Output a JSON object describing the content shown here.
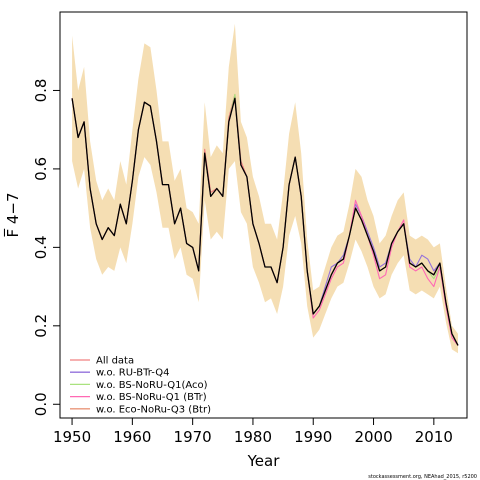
{
  "chart_data": {
    "type": "line",
    "title": "",
    "xlabel": "Year",
    "ylabel": "F̅ 4−7",
    "xlim": [
      1948,
      2015.5
    ],
    "ylim": [
      -0.035,
      1.0
    ],
    "x_ticks": [
      1950,
      1960,
      1970,
      1980,
      1990,
      2000,
      2010
    ],
    "x_tick_labels": [
      "1950",
      "1960",
      "1970",
      "1980",
      "1990",
      "2000",
      "2010"
    ],
    "y_ticks": [
      0.0,
      0.2,
      0.4,
      0.6,
      0.8
    ],
    "y_tick_labels": [
      "0.0",
      "0.2",
      "0.4",
      "0.6",
      "0.8"
    ],
    "grid": false,
    "legend_position": "bottom-left",
    "colors": {
      "band": "#f5deb3",
      "main_line": "#000000",
      "all_data": "#f08080",
      "ru_btr_q4": "#9370db",
      "bs_noru_q1_aco": "#a9e27f",
      "bs_noru_q1_btr": "#ff69b4",
      "eco_noru_q3": "#e9967a"
    },
    "years": [
      1950,
      1951,
      1952,
      1953,
      1954,
      1955,
      1956,
      1957,
      1958,
      1959,
      1960,
      1961,
      1962,
      1963,
      1964,
      1965,
      1966,
      1967,
      1968,
      1969,
      1970,
      1971,
      1972,
      1973,
      1974,
      1975,
      1976,
      1977,
      1978,
      1979,
      1980,
      1981,
      1982,
      1983,
      1984,
      1985,
      1986,
      1987,
      1988,
      1989,
      1990,
      1991,
      1992,
      1993,
      1994,
      1995,
      1996,
      1997,
      1998,
      1999,
      2000,
      2001,
      2002,
      2003,
      2004,
      2005,
      2006,
      2007,
      2008,
      2009,
      2010,
      2011,
      2012,
      2013,
      2014
    ],
    "band_upper": [
      0.94,
      0.8,
      0.86,
      0.67,
      0.57,
      0.52,
      0.55,
      0.52,
      0.62,
      0.56,
      0.7,
      0.83,
      0.92,
      0.91,
      0.8,
      0.67,
      0.67,
      0.57,
      0.6,
      0.5,
      0.49,
      0.46,
      0.77,
      0.63,
      0.66,
      0.64,
      0.86,
      0.97,
      0.72,
      0.68,
      0.58,
      0.53,
      0.46,
      0.46,
      0.42,
      0.54,
      0.69,
      0.77,
      0.64,
      0.42,
      0.29,
      0.3,
      0.35,
      0.4,
      0.43,
      0.44,
      0.51,
      0.6,
      0.58,
      0.52,
      0.48,
      0.41,
      0.43,
      0.48,
      0.52,
      0.54,
      0.43,
      0.42,
      0.43,
      0.42,
      0.4,
      0.41,
      0.3,
      0.2,
      0.18
    ],
    "band_lower": [
      0.62,
      0.55,
      0.6,
      0.45,
      0.37,
      0.33,
      0.35,
      0.34,
      0.4,
      0.36,
      0.46,
      0.58,
      0.63,
      0.61,
      0.54,
      0.45,
      0.45,
      0.37,
      0.4,
      0.33,
      0.32,
      0.26,
      0.52,
      0.42,
      0.44,
      0.42,
      0.6,
      0.62,
      0.49,
      0.46,
      0.35,
      0.31,
      0.26,
      0.27,
      0.23,
      0.3,
      0.43,
      0.48,
      0.41,
      0.25,
      0.17,
      0.19,
      0.23,
      0.27,
      0.3,
      0.31,
      0.36,
      0.42,
      0.39,
      0.35,
      0.3,
      0.27,
      0.28,
      0.33,
      0.36,
      0.38,
      0.29,
      0.28,
      0.29,
      0.28,
      0.27,
      0.3,
      0.21,
      0.14,
      0.13
    ],
    "series": [
      {
        "name": "",
        "color_key": "main_line",
        "values": [
          0.78,
          0.68,
          0.72,
          0.55,
          0.46,
          0.42,
          0.45,
          0.43,
          0.51,
          0.46,
          0.57,
          0.7,
          0.77,
          0.76,
          0.67,
          0.56,
          0.56,
          0.46,
          0.5,
          0.41,
          0.4,
          0.34,
          0.64,
          0.53,
          0.55,
          0.53,
          0.72,
          0.78,
          0.61,
          0.58,
          0.46,
          0.41,
          0.35,
          0.35,
          0.31,
          0.4,
          0.56,
          0.63,
          0.53,
          0.34,
          0.23,
          0.25,
          0.29,
          0.33,
          0.36,
          0.37,
          0.43,
          0.5,
          0.47,
          0.43,
          0.39,
          0.34,
          0.35,
          0.41,
          0.44,
          0.46,
          0.36,
          0.35,
          0.36,
          0.34,
          0.33,
          0.36,
          0.26,
          0.18,
          0.15
        ]
      },
      {
        "name": "All data",
        "color_key": "all_data",
        "values": [
          0.78,
          0.68,
          0.72,
          0.55,
          0.46,
          0.42,
          0.45,
          0.43,
          0.51,
          0.46,
          0.57,
          0.7,
          0.77,
          0.76,
          0.67,
          0.56,
          0.56,
          0.46,
          0.5,
          0.41,
          0.4,
          0.34,
          0.65,
          0.54,
          0.55,
          0.53,
          0.73,
          0.79,
          0.62,
          0.58,
          0.46,
          0.41,
          0.35,
          0.35,
          0.31,
          0.4,
          0.56,
          0.63,
          0.53,
          0.34,
          0.23,
          0.25,
          0.29,
          0.33,
          0.36,
          0.37,
          0.43,
          0.5,
          0.47,
          0.43,
          0.39,
          0.34,
          0.35,
          0.41,
          0.44,
          0.46,
          0.36,
          0.35,
          0.36,
          0.34,
          0.33,
          0.36,
          0.26,
          0.18,
          0.15
        ]
      },
      {
        "name": "w.o. RU-BTr-Q4",
        "color_key": "ru_btr_q4",
        "values": [
          0.78,
          0.68,
          0.72,
          0.55,
          0.46,
          0.42,
          0.45,
          0.43,
          0.51,
          0.46,
          0.57,
          0.7,
          0.77,
          0.76,
          0.67,
          0.56,
          0.56,
          0.46,
          0.5,
          0.41,
          0.4,
          0.34,
          0.64,
          0.53,
          0.55,
          0.53,
          0.72,
          0.78,
          0.61,
          0.58,
          0.46,
          0.41,
          0.35,
          0.35,
          0.31,
          0.4,
          0.56,
          0.63,
          0.53,
          0.34,
          0.23,
          0.25,
          0.3,
          0.35,
          0.36,
          0.38,
          0.43,
          0.51,
          0.48,
          0.44,
          0.4,
          0.35,
          0.36,
          0.41,
          0.44,
          0.46,
          0.37,
          0.35,
          0.38,
          0.37,
          0.34,
          0.36,
          0.26,
          0.18,
          0.15
        ]
      },
      {
        "name": "w.o. BS-NoRU-Q1(Aco)",
        "color_key": "bs_noru_q1_aco",
        "values": [
          0.78,
          0.68,
          0.72,
          0.55,
          0.46,
          0.42,
          0.45,
          0.43,
          0.51,
          0.46,
          0.57,
          0.7,
          0.77,
          0.76,
          0.67,
          0.56,
          0.56,
          0.46,
          0.5,
          0.41,
          0.4,
          0.34,
          0.64,
          0.53,
          0.55,
          0.53,
          0.72,
          0.79,
          0.61,
          0.58,
          0.46,
          0.41,
          0.35,
          0.35,
          0.31,
          0.4,
          0.56,
          0.63,
          0.53,
          0.34,
          0.23,
          0.25,
          0.29,
          0.33,
          0.36,
          0.37,
          0.43,
          0.5,
          0.47,
          0.43,
          0.39,
          0.34,
          0.35,
          0.41,
          0.44,
          0.46,
          0.36,
          0.35,
          0.36,
          0.34,
          0.32,
          0.35,
          0.26,
          0.18,
          0.15
        ]
      },
      {
        "name": "w.o. BS-NoRu-Q1 (BTr)",
        "color_key": "bs_noru_q1_btr",
        "values": [
          0.78,
          0.68,
          0.72,
          0.55,
          0.46,
          0.42,
          0.45,
          0.43,
          0.51,
          0.46,
          0.57,
          0.7,
          0.77,
          0.76,
          0.67,
          0.56,
          0.56,
          0.46,
          0.5,
          0.41,
          0.4,
          0.34,
          0.64,
          0.53,
          0.55,
          0.53,
          0.72,
          0.78,
          0.61,
          0.58,
          0.46,
          0.41,
          0.35,
          0.35,
          0.31,
          0.4,
          0.56,
          0.63,
          0.53,
          0.34,
          0.22,
          0.24,
          0.28,
          0.32,
          0.35,
          0.36,
          0.43,
          0.52,
          0.48,
          0.43,
          0.38,
          0.32,
          0.33,
          0.4,
          0.44,
          0.47,
          0.35,
          0.34,
          0.35,
          0.32,
          0.3,
          0.35,
          0.25,
          0.17,
          0.15
        ]
      },
      {
        "name": "w.o. Eco-NoRu-Q3 (Btr)",
        "color_key": "eco_noru_q3",
        "values": [
          0.78,
          0.68,
          0.72,
          0.55,
          0.46,
          0.42,
          0.45,
          0.43,
          0.51,
          0.46,
          0.57,
          0.7,
          0.77,
          0.76,
          0.67,
          0.56,
          0.56,
          0.46,
          0.5,
          0.41,
          0.4,
          0.34,
          0.64,
          0.53,
          0.55,
          0.53,
          0.72,
          0.78,
          0.61,
          0.58,
          0.46,
          0.41,
          0.35,
          0.35,
          0.31,
          0.4,
          0.56,
          0.63,
          0.53,
          0.34,
          0.23,
          0.25,
          0.29,
          0.33,
          0.36,
          0.37,
          0.43,
          0.5,
          0.47,
          0.43,
          0.39,
          0.34,
          0.35,
          0.41,
          0.44,
          0.46,
          0.36,
          0.35,
          0.36,
          0.34,
          0.33,
          0.36,
          0.26,
          0.18,
          0.15
        ]
      }
    ],
    "credit": "stockassessment.org, NEAhad_2015, r5200"
  }
}
